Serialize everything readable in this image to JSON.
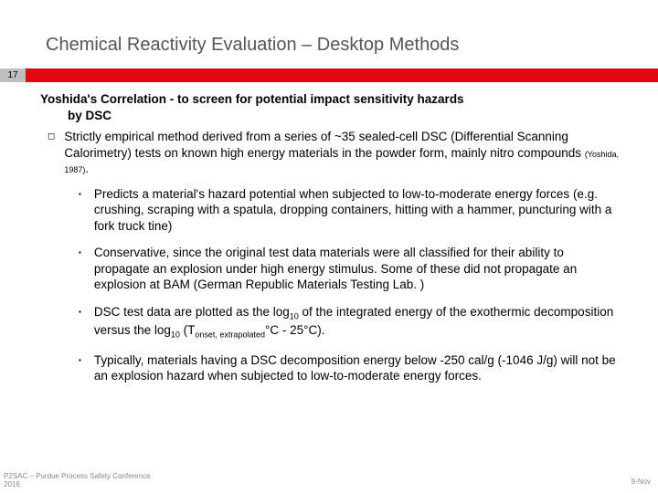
{
  "title": "Chemical Reactivity Evaluation – Desktop Methods",
  "slide_number": "17",
  "heading_line1": "Yoshida's Correlation - to screen for potential impact sensitivity hazards",
  "heading_line2": "by DSC",
  "main_bullet_prefix": "Strictly empirical method derived from a series of ~35 sealed-cell DSC (Differential Scanning Calorimetry) tests on known high energy materials in the powder form, mainly nitro compounds ",
  "main_bullet_citation": "(Yoshida, 1987)",
  "main_bullet_suffix": ".",
  "sub1": "Predicts a material's hazard potential when subjected to low-to-moderate energy forces (e.g. crushing, scraping with a spatula, dropping containers, hitting with a hammer, puncturing with a fork truck tine)",
  "sub2": "Conservative, since the original test data materials were all classified for their ability to propagate an explosion under high energy stimulus.  Some of these did not propagate an explosion at BAM (German Republic Materials Testing Lab. )",
  "sub3_a": "DSC test data are plotted as the log",
  "sub3_b": " of the integrated energy of the exothermic decomposition versus the log",
  "sub3_c": " (T",
  "sub3_d": "°C - 25°C).",
  "sub3_sub10": "10",
  "sub3_onset": "onset, extrapolated",
  "sub4": "Typically, materials having a DSC decomposition energy below -250 cal/g (-1046 J/g) will not be an explosion hazard when subjected to low-to-moderate energy forces.",
  "footer_left_line1": "P2SAC – Purdue Process Safety Conference",
  "footer_left_line2": "2016",
  "footer_right": "9-Nov",
  "colors": {
    "title": "#555555",
    "red_bar": "#e30613",
    "slide_num_bg": "#bfbfbf",
    "footer": "#888888"
  }
}
